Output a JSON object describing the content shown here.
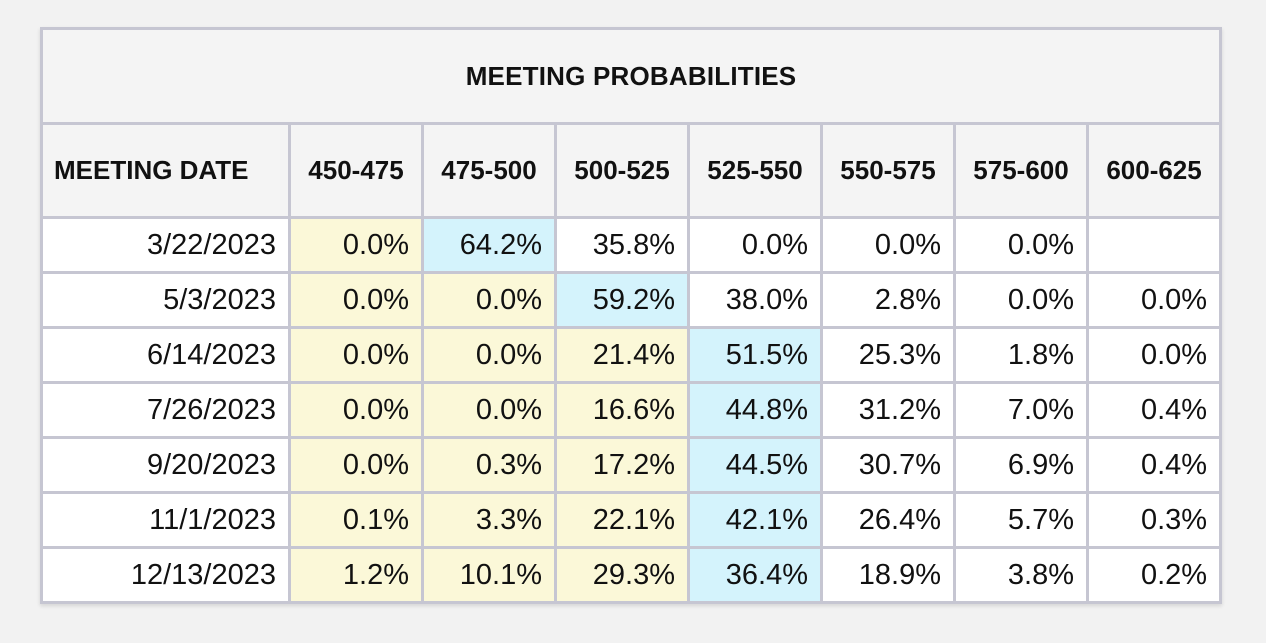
{
  "table": {
    "title": "MEETING PROBABILITIES",
    "headers": [
      "MEETING DATE",
      "450-475",
      "475-500",
      "500-525",
      "525-550",
      "550-575",
      "575-600",
      "600-625"
    ],
    "rows": [
      {
        "date": "3/22/2023",
        "values": [
          "0.0%",
          "64.2%",
          "35.8%",
          "0.0%",
          "0.0%",
          "0.0%",
          ""
        ],
        "current_col": 0,
        "max_col": 1
      },
      {
        "date": "5/3/2023",
        "values": [
          "0.0%",
          "0.0%",
          "59.2%",
          "38.0%",
          "2.8%",
          "0.0%",
          "0.0%"
        ],
        "current_col": 0,
        "max_col": 2
      },
      {
        "date": "6/14/2023",
        "values": [
          "0.0%",
          "0.0%",
          "21.4%",
          "51.5%",
          "25.3%",
          "1.8%",
          "0.0%"
        ],
        "current_col": 0,
        "max_col": 3
      },
      {
        "date": "7/26/2023",
        "values": [
          "0.0%",
          "0.0%",
          "16.6%",
          "44.8%",
          "31.2%",
          "7.0%",
          "0.4%"
        ],
        "current_col": 0,
        "max_col": 3
      },
      {
        "date": "9/20/2023",
        "values": [
          "0.0%",
          "0.3%",
          "17.2%",
          "44.5%",
          "30.7%",
          "6.9%",
          "0.4%"
        ],
        "current_col": 0,
        "max_col": 3
      },
      {
        "date": "11/1/2023",
        "values": [
          "0.1%",
          "3.3%",
          "22.1%",
          "42.1%",
          "26.4%",
          "5.7%",
          "0.3%"
        ],
        "current_col": 0,
        "max_col": 3
      },
      {
        "date": "12/13/2023",
        "values": [
          "1.2%",
          "10.1%",
          "29.3%",
          "36.4%",
          "18.9%",
          "3.8%",
          "0.2%"
        ],
        "current_col": 0,
        "max_col": 3
      }
    ],
    "highlight_rules": [
      {
        "scope": "column 450-475 in all rows; columns 475-500 and 500-525 in rows 2-7",
        "color": "#fbf8d8"
      },
      {
        "scope": "highest-probability cell per row",
        "color": "#d4f3fc"
      }
    ]
  }
}
